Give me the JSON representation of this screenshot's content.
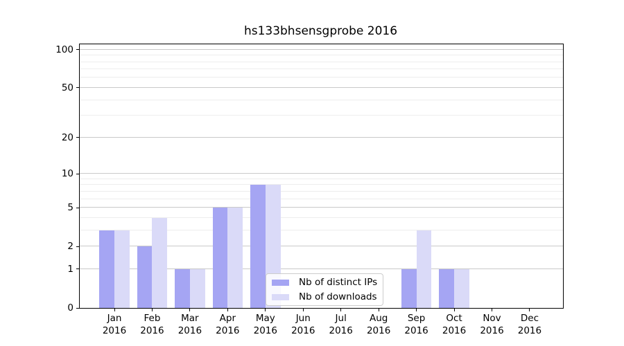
{
  "page": {
    "background": "#ffffff"
  },
  "chart_data": {
    "type": "bar",
    "title": "hs133bhsensgprobe 2016",
    "categories": [
      "Jan",
      "Feb",
      "Mar",
      "Apr",
      "May",
      "Jun",
      "Jul",
      "Aug",
      "Sep",
      "Oct",
      "Nov",
      "Dec"
    ],
    "x_year_label": "2016",
    "series": [
      {
        "name": "Nb of distinct IPs",
        "color": "#a5a5f3",
        "values": [
          3,
          2,
          1,
          5,
          8,
          0,
          0,
          0,
          1,
          1,
          0,
          0
        ]
      },
      {
        "name": "Nb of downloads",
        "color": "#dadaf8",
        "values": [
          3,
          4,
          1,
          5,
          8,
          0,
          0,
          0,
          3,
          1,
          0,
          0
        ]
      }
    ],
    "y_scale": "log1p",
    "ylim": [
      0,
      110
    ],
    "y_ticks": [
      0,
      1,
      2,
      5,
      10,
      20,
      50,
      100
    ],
    "y_minor_ticks": [
      3,
      4,
      6,
      7,
      8,
      9,
      30,
      40,
      60,
      70,
      80,
      90
    ],
    "grid": "on",
    "legend_position": "inside lower-center"
  }
}
